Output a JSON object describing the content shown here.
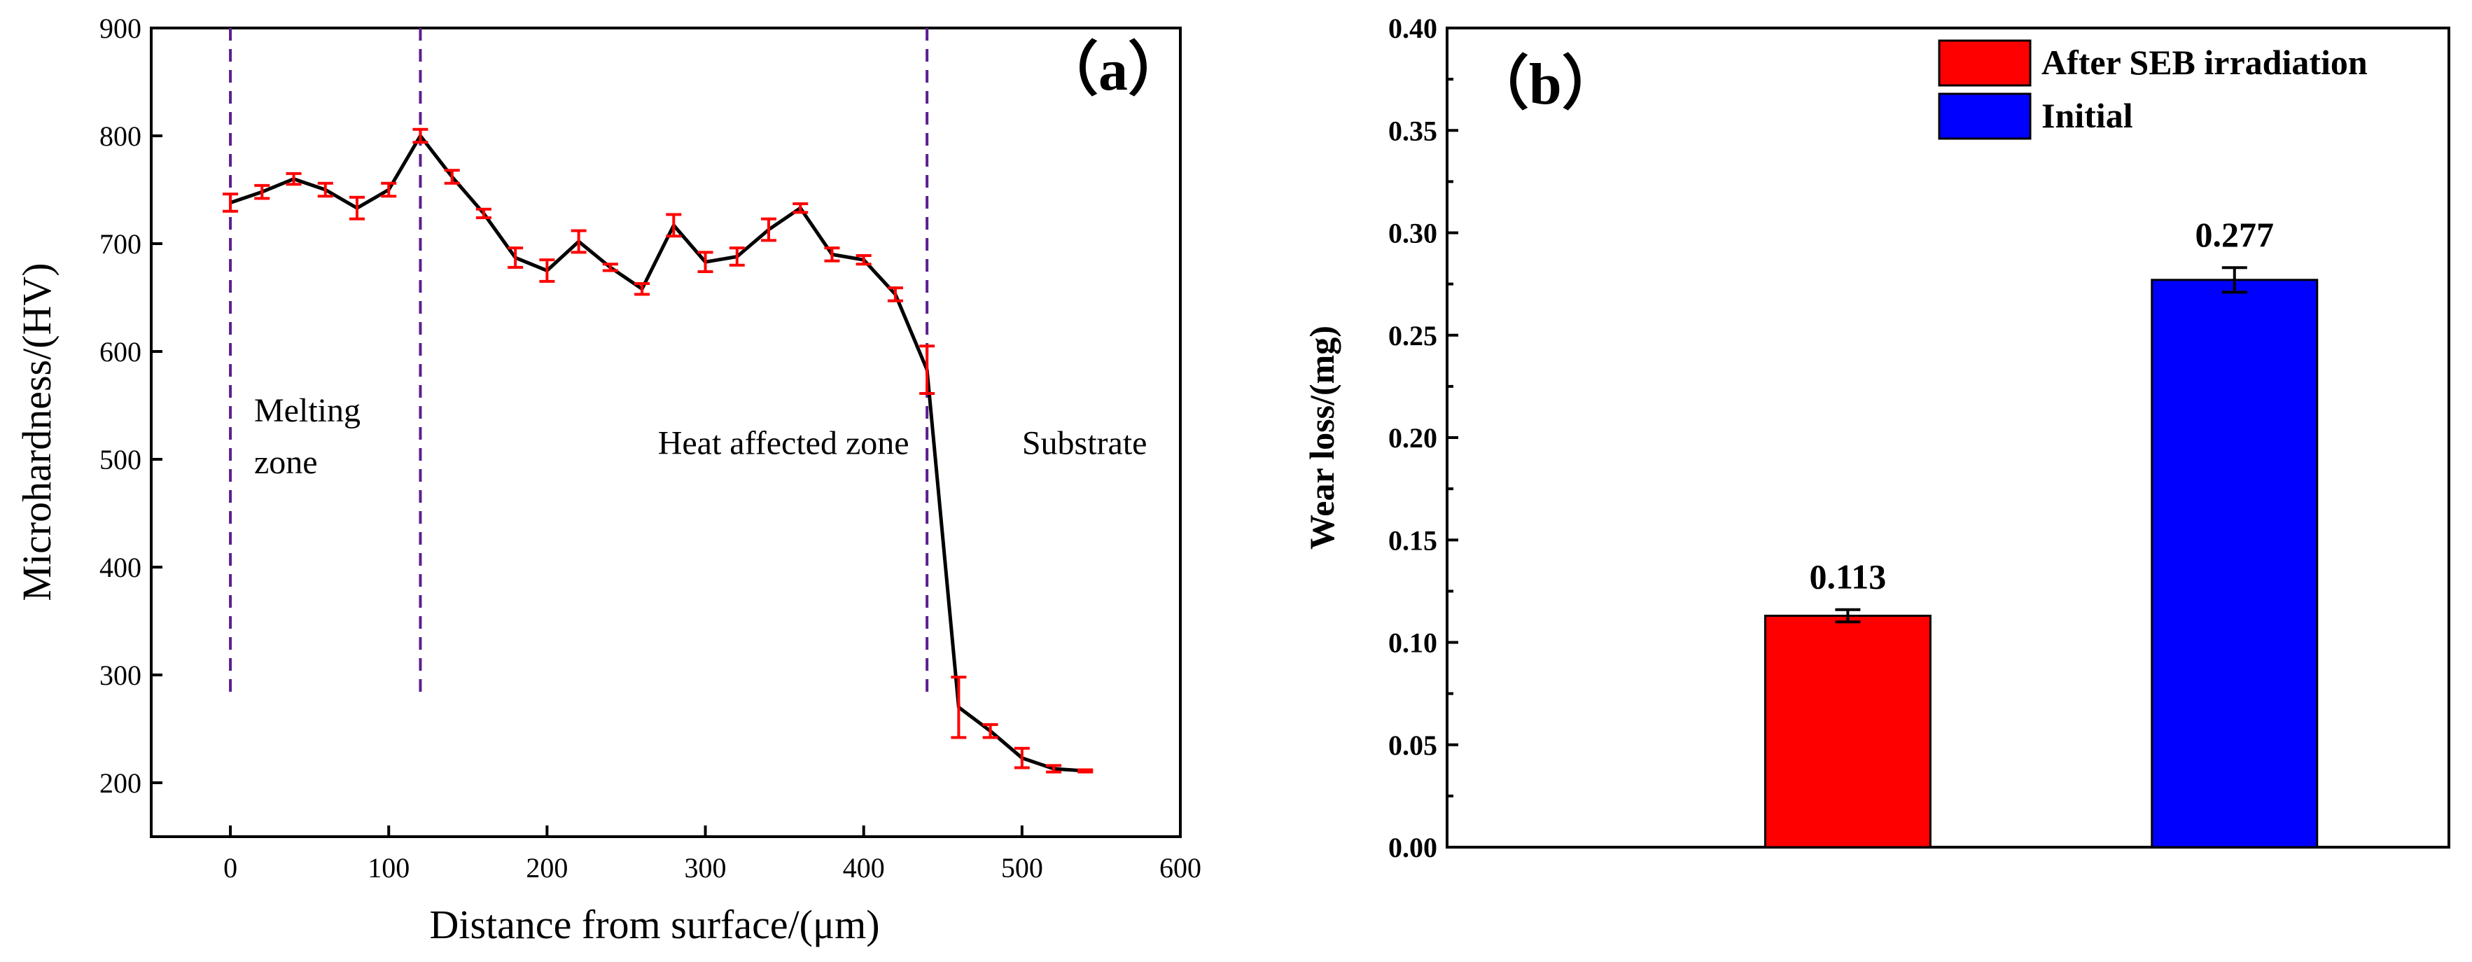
{
  "chart_data": [
    {
      "type": "line",
      "panel_label": "（a）",
      "xlabel": "Distance from surface/(μm)",
      "ylabel": "Microhardness/(HV)",
      "xlim": [
        -50,
        600
      ],
      "ylim": [
        150,
        900
      ],
      "xticks": [
        0,
        100,
        200,
        300,
        400,
        500,
        600
      ],
      "yticks": [
        200,
        300,
        400,
        500,
        600,
        700,
        800,
        900
      ],
      "grid": false,
      "line_color": "#000000",
      "errorbar_color": "#ff0000",
      "divider_color": "#5b1f8f",
      "series": [
        {
          "name": "Microhardness",
          "x": [
            0,
            20,
            40,
            60,
            80,
            100,
            120,
            140,
            160,
            180,
            200,
            220,
            240,
            260,
            280,
            300,
            320,
            340,
            360,
            380,
            400,
            420,
            440,
            460,
            480,
            500,
            520,
            540
          ],
          "y": [
            738,
            748,
            760,
            750,
            733,
            750,
            800,
            762,
            728,
            687,
            675,
            702,
            678,
            658,
            717,
            683,
            688,
            713,
            733,
            690,
            685,
            653,
            583,
            270,
            248,
            223,
            213,
            211
          ],
          "err": [
            8,
            6,
            5,
            6,
            10,
            6,
            6,
            6,
            4,
            9,
            10,
            10,
            3,
            5,
            10,
            9,
            8,
            10,
            4,
            6,
            4,
            6,
            22,
            28,
            6,
            9,
            3,
            1
          ]
        }
      ],
      "dividers_x": [
        0,
        120,
        440
      ],
      "divider_span": [
        280,
        900
      ],
      "zones": [
        {
          "label_lines": [
            "Melting",
            "zone"
          ],
          "x": 15,
          "y": 535
        },
        {
          "label_lines": [
            "Heat affected zone"
          ],
          "x": 270,
          "y": 505
        },
        {
          "label_lines": [
            "Substrate"
          ],
          "x": 500,
          "y": 505
        }
      ]
    },
    {
      "type": "bar",
      "panel_label": "（b）",
      "xlabel": "",
      "ylabel": "Wear loss/(mg)",
      "ylim": [
        0,
        0.4
      ],
      "yticks": [
        "0.00",
        "0.05",
        "0.10",
        "0.15",
        "0.20",
        "0.25",
        "0.30",
        "0.35",
        "0.40"
      ],
      "ytick_values": [
        0,
        0.05,
        0.1,
        0.15,
        0.2,
        0.25,
        0.3,
        0.35,
        0.4
      ],
      "grid": false,
      "legend_position": "top-right",
      "series": [
        {
          "name": "After SEB irradiation",
          "value": 0.113,
          "label": "0.113",
          "err": 0.003,
          "color": "#ff0000"
        },
        {
          "name": "Initial",
          "value": 0.277,
          "label": "0.277",
          "err": 0.006,
          "color": "#0000ff"
        }
      ]
    }
  ]
}
